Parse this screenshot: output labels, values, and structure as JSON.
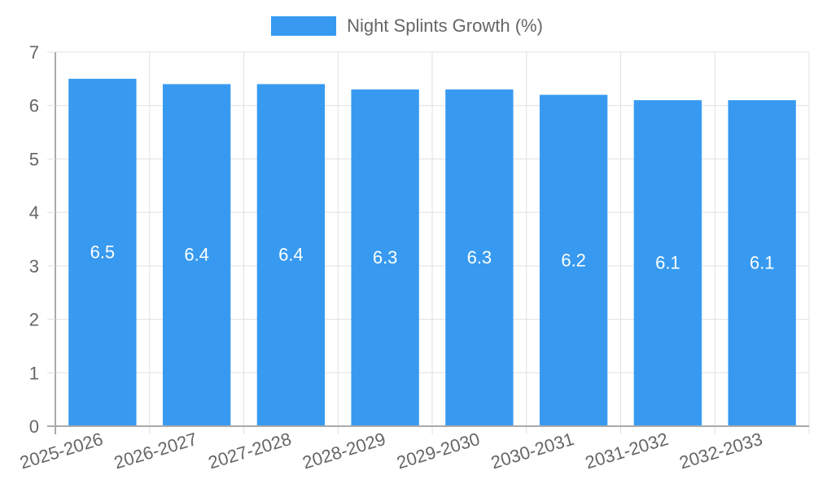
{
  "chart_data": {
    "type": "bar",
    "title": "",
    "categories": [
      "2025-2026",
      "2026-2027",
      "2027-2028",
      "2028-2029",
      "2029-2030",
      "2030-2031",
      "2031-2032",
      "2032-2033"
    ],
    "series": [
      {
        "name": "Night Splints Growth (%)",
        "values": [
          6.5,
          6.4,
          6.4,
          6.3,
          6.3,
          6.2,
          6.1,
          6.1
        ],
        "color": "#379AF0"
      }
    ],
    "data_labels": [
      "6.5",
      "6.4",
      "6.4",
      "6.3",
      "6.3",
      "6.2",
      "6.1",
      "6.1"
    ],
    "xlabel": "",
    "ylabel": "",
    "ylim": [
      0,
      7
    ],
    "yticks": [
      0,
      1,
      2,
      3,
      4,
      5,
      6,
      7
    ],
    "grid": true,
    "legend_position": "top"
  },
  "legend": {
    "label": "Night Splints Growth (%)",
    "color": "#379AF0"
  },
  "colors": {
    "bar": "#379AF0",
    "grid": "#e0e0e0",
    "axis": "#aaaaaa",
    "tick_text": "#666666",
    "label_text": "#ffffff"
  }
}
